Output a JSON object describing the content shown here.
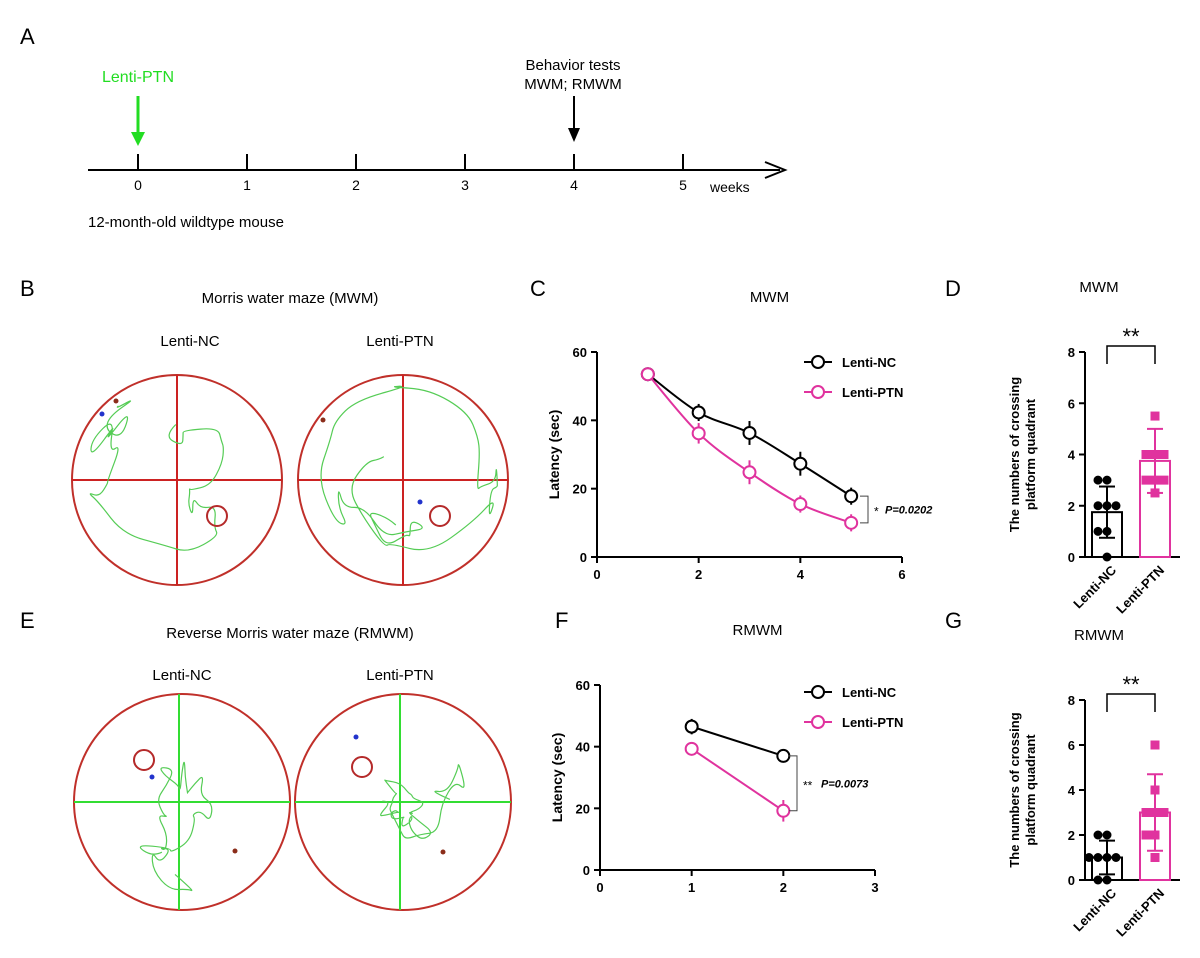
{
  "panels": {
    "A": "A",
    "B": "B",
    "C": "C",
    "D": "D",
    "E": "E",
    "F": "F",
    "G": "G"
  },
  "timeline": {
    "injection_label": "Lenti-PTN",
    "behavior_line1": "Behavior tests",
    "behavior_line2": "MWM; RMWM",
    "ticks": [
      "0",
      "1",
      "2",
      "3",
      "4",
      "5"
    ],
    "unit": "weeks",
    "subject": "12-month-old wildtype mouse",
    "injection_color": "#22dd22",
    "behavior_week": 4
  },
  "maze_mwm": {
    "title": "Morris water maze (MWM)",
    "left_label": "Lenti-NC",
    "right_label": "Lenti-PTN",
    "cross_color": "#cc2222",
    "track_color": "#55cc55"
  },
  "maze_rmwm": {
    "title": "Reverse  Morris water maze (RMWM)",
    "left_label": "Lenti-NC",
    "right_label": "Lenti-PTN",
    "cross_color": "#33dd33",
    "track_color": "#55cc55"
  },
  "colors": {
    "nc": "#000000",
    "ptn": "#e0339e"
  },
  "chart_data": [
    {
      "panel": "C",
      "type": "line",
      "title": "MWM",
      "xlabel": "",
      "ylabel": "Latency (sec)",
      "xlim": [
        0,
        6
      ],
      "ylim": [
        0,
        60
      ],
      "xticks": [
        0,
        2,
        4,
        6
      ],
      "yticks": [
        0,
        20,
        40,
        60
      ],
      "series": [
        {
          "name": "Lenti-NC",
          "x": [
            1,
            2,
            3,
            4,
            5
          ],
          "y": [
            53.5,
            42.3,
            36.3,
            27.3,
            17.8
          ],
          "err": [
            1.5,
            2.5,
            3.5,
            3.5,
            2.5
          ]
        },
        {
          "name": "Lenti-PTN",
          "x": [
            1,
            2,
            3,
            4,
            5
          ],
          "y": [
            53.5,
            36.2,
            24.8,
            15.5,
            10.0
          ],
          "err": [
            1.5,
            3.0,
            3.5,
            2.5,
            2.5
          ]
        }
      ],
      "annotation": {
        "stars": "*",
        "p": "P=0.0202"
      }
    },
    {
      "panel": "D",
      "type": "bar",
      "title": "MWM",
      "ylabel_line1": "The numbers of crossing",
      "ylabel_line2": "platform quadrant",
      "ylim": [
        0,
        8
      ],
      "yticks": [
        0,
        2,
        4,
        6,
        8
      ],
      "categories": [
        "Lenti-NC",
        "Lenti-PTN"
      ],
      "values": [
        1.75,
        3.75
      ],
      "err": [
        1.0,
        1.25
      ],
      "points": [
        [
          3,
          3,
          2,
          2,
          2,
          1,
          0,
          1
        ],
        [
          5.5,
          4,
          4,
          4,
          3,
          3,
          3,
          2.5
        ]
      ],
      "annotation": "**"
    },
    {
      "panel": "F",
      "type": "line",
      "title": "RMWM",
      "xlabel": "",
      "ylabel": "Latency (sec)",
      "xlim": [
        0,
        3
      ],
      "ylim": [
        0,
        60
      ],
      "xticks": [
        0,
        1,
        2,
        3
      ],
      "yticks": [
        0,
        20,
        40,
        60
      ],
      "series": [
        {
          "name": "Lenti-NC",
          "x": [
            1,
            2
          ],
          "y": [
            46.5,
            37.0
          ],
          "err": [
            2.5,
            2.0
          ]
        },
        {
          "name": "Lenti-PTN",
          "x": [
            1,
            2
          ],
          "y": [
            39.3,
            19.2
          ],
          "err": [
            2.0,
            3.5
          ]
        }
      ],
      "annotation": {
        "stars": "**",
        "p": "P=0.0073"
      }
    },
    {
      "panel": "G",
      "type": "bar",
      "title": "RMWM",
      "ylabel_line1": "The numbers of crossing",
      "ylabel_line2": "platform quadrant",
      "ylim": [
        0,
        8
      ],
      "yticks": [
        0,
        2,
        4,
        6,
        8
      ],
      "categories": [
        "Lenti-NC",
        "Lenti-PTN"
      ],
      "values": [
        1.0,
        3.0
      ],
      "err": [
        0.75,
        1.7
      ],
      "points": [
        [
          2,
          2,
          1,
          1,
          1,
          1,
          0,
          0
        ],
        [
          6,
          4,
          3,
          3,
          3,
          2,
          2,
          1
        ]
      ],
      "annotation": "**"
    }
  ]
}
